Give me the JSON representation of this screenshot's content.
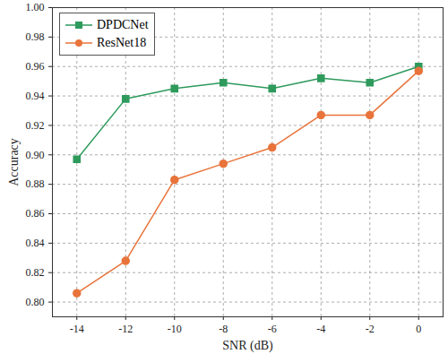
{
  "chart_data": {
    "type": "line",
    "x_label": "SNR (dB)",
    "y_label": "Accuracy",
    "x": [
      -14,
      -12,
      -10,
      -8,
      -6,
      -4,
      -2,
      0
    ],
    "series": [
      {
        "name": "DPDCNet",
        "color": "#2e9a5c",
        "marker": "square",
        "line_style": "solid",
        "values": [
          0.897,
          0.938,
          0.945,
          0.949,
          0.945,
          0.952,
          0.949,
          0.96
        ]
      },
      {
        "name": "ResNet18",
        "color": "#e8743b",
        "marker": "circle",
        "line_style": "solid",
        "values": [
          0.806,
          0.828,
          0.883,
          0.894,
          0.905,
          0.927,
          0.927,
          0.957
        ]
      }
    ],
    "xlim": [
      -15,
      1
    ],
    "xticks": [
      -14,
      -12,
      -10,
      -8,
      -6,
      -4,
      -2,
      0
    ],
    "ylim": [
      0.79,
      1.0
    ],
    "yticks": [
      {
        "value": 0.8,
        "label": "0.80"
      },
      {
        "value": 0.82,
        "label": "0.82"
      },
      {
        "value": 0.84,
        "label": "0.84"
      },
      {
        "value": 0.86,
        "label": "0.86"
      },
      {
        "value": 0.88,
        "label": "0.88"
      },
      {
        "value": 0.9,
        "label": "0.90"
      },
      {
        "value": 0.92,
        "label": "0.92"
      },
      {
        "value": 0.94,
        "label": "0.94"
      },
      {
        "value": 0.96,
        "label": "0.96"
      },
      {
        "value": 0.98,
        "label": "0.98"
      },
      {
        "value": 1.0,
        "label": "1.00"
      }
    ],
    "grid": true,
    "legend": "upper left"
  }
}
